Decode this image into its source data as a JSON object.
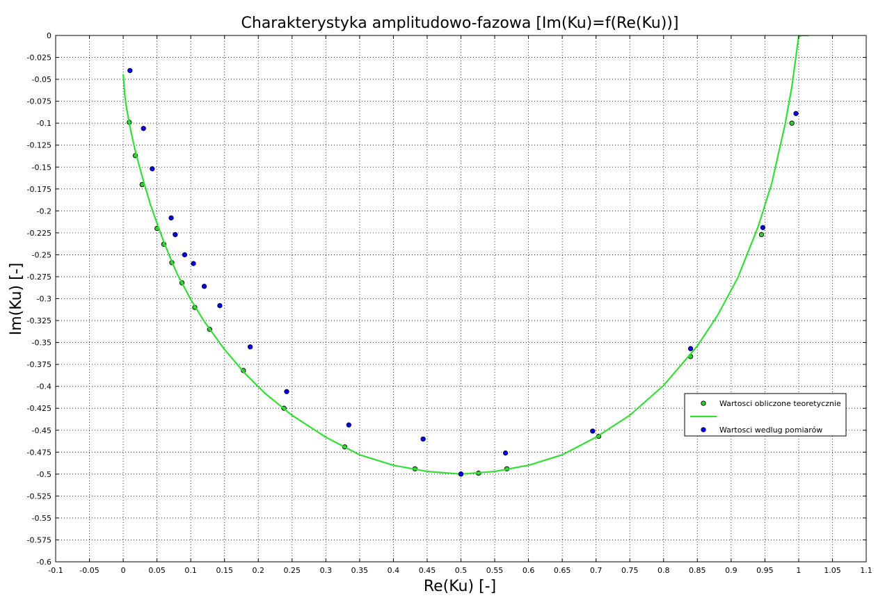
{
  "chart_data": {
    "type": "scatter",
    "title": "Charakterystyka amplitudowo-fazowa [Im(Ku)=f(Re(Ku))]",
    "xlabel": "Re(Ku) [-]",
    "ylabel": "Im(Ku) [-]",
    "xlim": [
      -0.1,
      1.1
    ],
    "ylim": [
      -0.6,
      0
    ],
    "grid": true,
    "legend_position": "right",
    "x_ticks": [
      "-0.1",
      "-0.05",
      "0",
      "0.05",
      "0.1",
      "0.15",
      "0.2",
      "0.25",
      "0.3",
      "0.35",
      "0.4",
      "0.45",
      "0.5",
      "0.55",
      "0.6",
      "0.65",
      "0.7",
      "0.75",
      "0.8",
      "0.85",
      "0.9",
      "0.95",
      "1",
      "1.05",
      "1.1"
    ],
    "y_ticks": [
      "0",
      "-0.025",
      "-0.05",
      "-0.075",
      "-0.1",
      "-0.125",
      "-0.15",
      "-0.175",
      "-0.2",
      "-0.225",
      "-0.25",
      "-0.275",
      "-0.3",
      "-0.325",
      "-0.35",
      "-0.375",
      "-0.4",
      "-0.425",
      "-0.45",
      "-0.475",
      "-0.5",
      "-0.525",
      "-0.55",
      "-0.575",
      "-0.6"
    ],
    "series": [
      {
        "name": "Wartosci obliczone teoretycznie",
        "kind": "marker",
        "color": "#33cc33",
        "edge_color": "#000000",
        "x": [
          0.009,
          0.018,
          0.028,
          0.05,
          0.06,
          0.072,
          0.087,
          0.106,
          0.128,
          0.178,
          0.238,
          0.328,
          0.432,
          0.5,
          0.526,
          0.568,
          0.704,
          0.84,
          0.945,
          0.99
        ],
        "y": [
          -0.099,
          -0.137,
          -0.17,
          -0.22,
          -0.238,
          -0.259,
          -0.282,
          -0.31,
          -0.335,
          -0.382,
          -0.425,
          -0.469,
          -0.494,
          -0.5,
          -0.499,
          -0.494,
          -0.457,
          -0.366,
          -0.227,
          -0.1
        ]
      },
      {
        "name": "",
        "kind": "line",
        "color": "#33dd33",
        "x": [
          0,
          0.0025,
          0.005,
          0.01,
          0.015,
          0.02,
          0.03,
          0.04,
          0.05,
          0.06,
          0.07,
          0.08,
          0.1,
          0.12,
          0.15,
          0.18,
          0.21,
          0.25,
          0.3,
          0.35,
          0.4,
          0.45,
          0.5,
          0.55,
          0.6,
          0.65,
          0.7,
          0.75,
          0.8,
          0.85,
          0.88,
          0.91,
          0.94,
          0.96,
          0.98,
          0.99,
          1.0,
          1.005,
          1.01,
          1.015
        ],
        "y": [
          -0.044,
          -0.069,
          -0.083,
          -0.104,
          -0.122,
          -0.138,
          -0.166,
          -0.192,
          -0.214,
          -0.235,
          -0.254,
          -0.272,
          -0.301,
          -0.326,
          -0.358,
          -0.385,
          -0.408,
          -0.433,
          -0.458,
          -0.478,
          -0.49,
          -0.497,
          -0.5,
          -0.497,
          -0.49,
          -0.478,
          -0.458,
          -0.433,
          -0.399,
          -0.354,
          -0.319,
          -0.276,
          -0.218,
          -0.169,
          -0.101,
          -0.058,
          -0.001,
          0.0,
          0.0,
          0.0
        ]
      },
      {
        "name": "Wartosci wedlug pomiarów",
        "kind": "marker",
        "color": "#0000ee",
        "edge_color": "#000033",
        "x": [
          0.01,
          0.03,
          0.043,
          0.071,
          0.077,
          0.091,
          0.104,
          0.12,
          0.143,
          0.188,
          0.242,
          0.334,
          0.444,
          0.5,
          0.566,
          0.695,
          0.84,
          0.947,
          0.996
        ],
        "y": [
          -0.04,
          -0.106,
          -0.152,
          -0.208,
          -0.227,
          -0.25,
          -0.26,
          -0.286,
          -0.308,
          -0.355,
          -0.406,
          -0.444,
          -0.46,
          -0.5,
          -0.476,
          -0.451,
          -0.357,
          -0.219,
          -0.089
        ]
      }
    ],
    "legend": {
      "entries": [
        "Wartosci obliczone teoretycznie",
        "",
        "Wartosci wedlug pomiarów"
      ]
    }
  }
}
